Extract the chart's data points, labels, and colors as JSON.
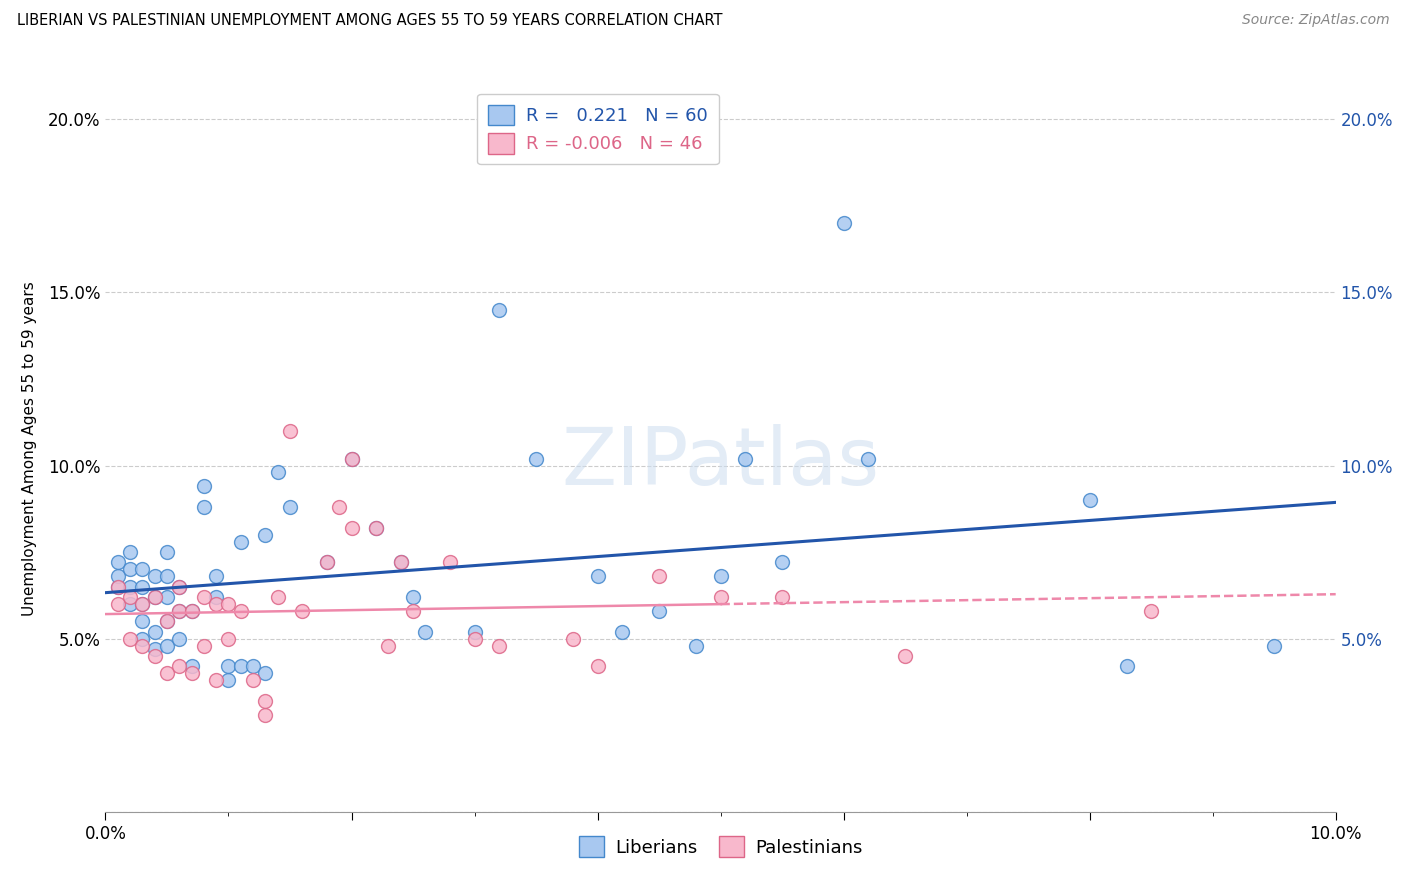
{
  "title": "LIBERIAN VS PALESTINIAN UNEMPLOYMENT AMONG AGES 55 TO 59 YEARS CORRELATION CHART",
  "source": "Source: ZipAtlas.com",
  "ylabel": "Unemployment Among Ages 55 to 59 years",
  "xlim": [
    0.0,
    0.1
  ],
  "ylim": [
    0.0,
    0.21
  ],
  "xtick_major": [
    0.0,
    0.02,
    0.04,
    0.06,
    0.08,
    0.1
  ],
  "ytick_major": [
    0.0,
    0.05,
    0.1,
    0.15,
    0.2
  ],
  "xtick_labels": [
    "0.0%",
    "",
    "",
    "",
    "",
    "10.0%"
  ],
  "ytick_labels": [
    "",
    "5.0%",
    "10.0%",
    "15.0%",
    "20.0%"
  ],
  "liberian_R": 0.221,
  "liberian_N": 60,
  "palestinian_R": -0.006,
  "palestinian_N": 46,
  "liberian_color": "#a8c8f0",
  "liberian_edge": "#4488cc",
  "palestinian_color": "#f8b8cc",
  "palestinian_edge": "#dd6688",
  "liberian_line": "#2255aa",
  "palestinian_line": "#ee88aa",
  "grid_color": "#cccccc",
  "bg_color": "#ffffff",
  "liberian_x": [
    0.001,
    0.001,
    0.001,
    0.002,
    0.002,
    0.002,
    0.002,
    0.003,
    0.003,
    0.003,
    0.003,
    0.003,
    0.004,
    0.004,
    0.004,
    0.004,
    0.005,
    0.005,
    0.005,
    0.005,
    0.005,
    0.006,
    0.006,
    0.006,
    0.007,
    0.007,
    0.008,
    0.008,
    0.009,
    0.009,
    0.01,
    0.01,
    0.011,
    0.011,
    0.012,
    0.013,
    0.013,
    0.014,
    0.015,
    0.018,
    0.02,
    0.022,
    0.024,
    0.025,
    0.026,
    0.03,
    0.032,
    0.035,
    0.04,
    0.042,
    0.045,
    0.048,
    0.05,
    0.052,
    0.055,
    0.06,
    0.062,
    0.08,
    0.083,
    0.095
  ],
  "liberian_y": [
    0.065,
    0.068,
    0.072,
    0.06,
    0.065,
    0.07,
    0.075,
    0.05,
    0.055,
    0.06,
    0.065,
    0.07,
    0.047,
    0.052,
    0.062,
    0.068,
    0.048,
    0.055,
    0.062,
    0.068,
    0.075,
    0.05,
    0.058,
    0.065,
    0.042,
    0.058,
    0.088,
    0.094,
    0.062,
    0.068,
    0.038,
    0.042,
    0.042,
    0.078,
    0.042,
    0.04,
    0.08,
    0.098,
    0.088,
    0.072,
    0.102,
    0.082,
    0.072,
    0.062,
    0.052,
    0.052,
    0.145,
    0.102,
    0.068,
    0.052,
    0.058,
    0.048,
    0.068,
    0.102,
    0.072,
    0.17,
    0.102,
    0.09,
    0.042,
    0.048
  ],
  "palestinian_x": [
    0.001,
    0.001,
    0.002,
    0.002,
    0.003,
    0.003,
    0.004,
    0.004,
    0.005,
    0.005,
    0.006,
    0.006,
    0.006,
    0.007,
    0.007,
    0.008,
    0.008,
    0.009,
    0.009,
    0.01,
    0.01,
    0.011,
    0.012,
    0.013,
    0.013,
    0.014,
    0.015,
    0.016,
    0.018,
    0.019,
    0.02,
    0.02,
    0.022,
    0.023,
    0.024,
    0.025,
    0.028,
    0.03,
    0.032,
    0.038,
    0.04,
    0.045,
    0.05,
    0.055,
    0.065,
    0.085
  ],
  "palestinian_y": [
    0.06,
    0.065,
    0.05,
    0.062,
    0.048,
    0.06,
    0.045,
    0.062,
    0.04,
    0.055,
    0.042,
    0.058,
    0.065,
    0.04,
    0.058,
    0.048,
    0.062,
    0.038,
    0.06,
    0.05,
    0.06,
    0.058,
    0.038,
    0.028,
    0.032,
    0.062,
    0.11,
    0.058,
    0.072,
    0.088,
    0.082,
    0.102,
    0.082,
    0.048,
    0.072,
    0.058,
    0.072,
    0.05,
    0.048,
    0.05,
    0.042,
    0.068,
    0.062,
    0.062,
    0.045,
    0.058
  ]
}
